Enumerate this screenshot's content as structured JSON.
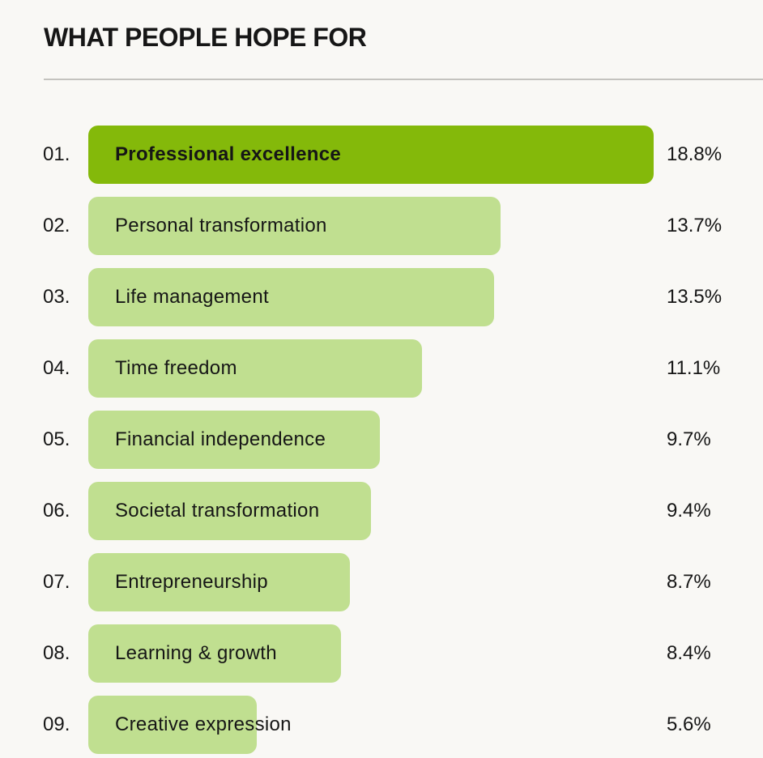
{
  "chart_data": {
    "type": "bar",
    "orientation": "horizontal",
    "title": "WHAT PEOPLE HOPE FOR",
    "xlim": [
      0,
      18.8
    ],
    "grid": false,
    "colors": {
      "highlight": "#84b90a",
      "default": "#c0df90"
    },
    "items": [
      {
        "rank": "01.",
        "label": "Professional excellence",
        "value": 18.8,
        "display": "18.8%"
      },
      {
        "rank": "02.",
        "label": "Personal transformation",
        "value": 13.7,
        "display": "13.7%"
      },
      {
        "rank": "03.",
        "label": "Life management",
        "value": 13.5,
        "display": "13.5%"
      },
      {
        "rank": "04.",
        "label": "Time freedom",
        "value": 11.1,
        "display": "11.1%"
      },
      {
        "rank": "05.",
        "label": "Financial independence",
        "value": 9.7,
        "display": "9.7%"
      },
      {
        "rank": "06.",
        "label": "Societal transformation",
        "value": 9.4,
        "display": "9.4%"
      },
      {
        "rank": "07.",
        "label": "Entrepreneurship",
        "value": 8.7,
        "display": "8.7%"
      },
      {
        "rank": "08.",
        "label": "Learning & growth",
        "value": 8.4,
        "display": "8.4%"
      },
      {
        "rank": "09.",
        "label": "Creative expression",
        "value": 5.6,
        "display": "5.6%"
      }
    ]
  }
}
